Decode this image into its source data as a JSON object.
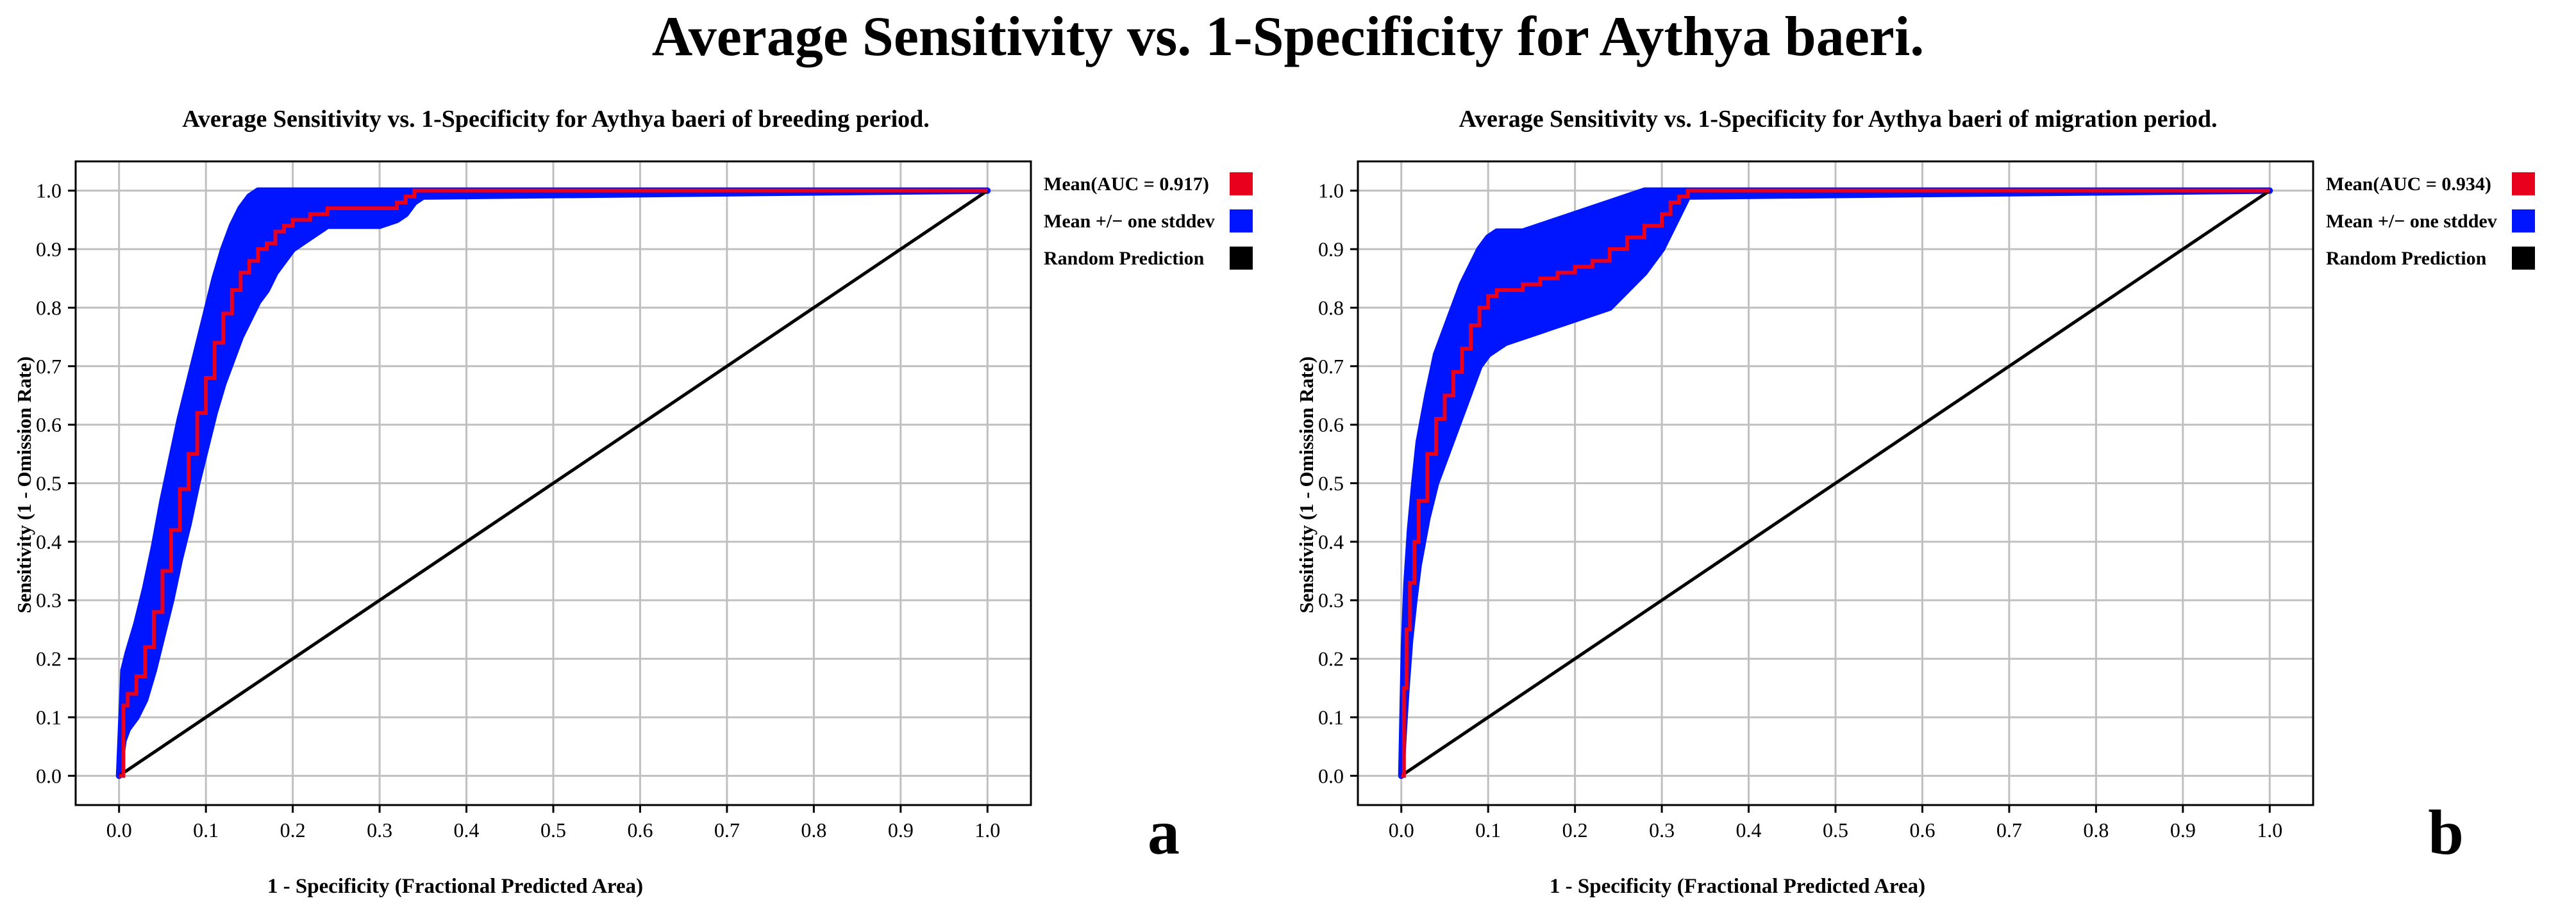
{
  "title": "Average Sensitivity vs. 1-Specificity for Aythya baeri.",
  "colors": {
    "mean": "#e8001c",
    "band": "#0015ff",
    "random": "#000000",
    "grid": "#c0c0c0"
  },
  "chart_data": [
    {
      "type": "line",
      "panel_letter": "a",
      "title": "Average Sensitivity vs. 1-Specificity for Aythya baeri of breeding period.",
      "xlabel": "1 - Specificity (Fractional Predicted Area)",
      "ylabel": "Sensitivity (1 - Omission Rate)",
      "xlim": [
        -0.05,
        1.05
      ],
      "ylim": [
        -0.05,
        1.05
      ],
      "xticks": [
        "0.0",
        "0.1",
        "0.2",
        "0.3",
        "0.4",
        "0.5",
        "0.6",
        "0.7",
        "0.8",
        "0.9",
        "1.0"
      ],
      "yticks": [
        "0.0",
        "0.1",
        "0.2",
        "0.3",
        "0.4",
        "0.5",
        "0.6",
        "0.7",
        "0.8",
        "0.9",
        "1.0"
      ],
      "grid": true,
      "legend_position": "right",
      "legend": [
        "Mean(AUC = 0.917)",
        "Mean +/− one stddev",
        "Random Prediction"
      ],
      "series": [
        {
          "name": "Mean",
          "x": [
            0,
            0.005,
            0.01,
            0.02,
            0.03,
            0.04,
            0.05,
            0.06,
            0.07,
            0.08,
            0.09,
            0.1,
            0.11,
            0.12,
            0.13,
            0.14,
            0.15,
            0.16,
            0.17,
            0.18,
            0.19,
            0.2,
            0.22,
            0.24,
            0.26,
            0.28,
            0.3,
            0.32,
            0.33,
            0.34,
            0.35,
            1.0
          ],
          "y": [
            0,
            0.12,
            0.14,
            0.17,
            0.22,
            0.28,
            0.35,
            0.42,
            0.49,
            0.55,
            0.62,
            0.68,
            0.74,
            0.79,
            0.83,
            0.86,
            0.88,
            0.9,
            0.91,
            0.93,
            0.94,
            0.95,
            0.96,
            0.97,
            0.97,
            0.97,
            0.97,
            0.98,
            0.99,
            1.0,
            1.0,
            1.0
          ]
        },
        {
          "name": "Mean + stddev",
          "x": [
            0,
            0.005,
            0.01,
            0.02,
            0.03,
            0.04,
            0.05,
            0.06,
            0.07,
            0.08,
            0.09,
            0.1,
            0.11,
            0.12,
            0.13,
            0.14,
            0.15,
            0.16,
            0.17,
            0.18,
            0.19,
            0.2,
            0.22,
            0.24,
            0.26,
            0.28,
            0.3,
            0.32,
            0.33,
            0.34,
            0.35,
            1.0
          ],
          "y": [
            0,
            0.18,
            0.21,
            0.26,
            0.32,
            0.39,
            0.47,
            0.54,
            0.61,
            0.67,
            0.73,
            0.79,
            0.85,
            0.9,
            0.94,
            0.97,
            0.99,
            1.0,
            1.0,
            1.0,
            1.0,
            1.0,
            1.0,
            1.0,
            1.0,
            1.0,
            1.0,
            1.0,
            1.0,
            1.0,
            1.0,
            1.0
          ]
        },
        {
          "name": "Mean - stddev",
          "x": [
            0,
            0.005,
            0.01,
            0.02,
            0.03,
            0.04,
            0.05,
            0.06,
            0.07,
            0.08,
            0.09,
            0.1,
            0.11,
            0.12,
            0.13,
            0.14,
            0.15,
            0.16,
            0.17,
            0.18,
            0.19,
            0.2,
            0.22,
            0.24,
            0.26,
            0.28,
            0.3,
            0.32,
            0.33,
            0.34,
            0.35,
            1.0
          ],
          "y": [
            0,
            0.06,
            0.08,
            0.1,
            0.13,
            0.18,
            0.24,
            0.3,
            0.37,
            0.43,
            0.5,
            0.56,
            0.62,
            0.67,
            0.71,
            0.75,
            0.78,
            0.81,
            0.83,
            0.86,
            0.88,
            0.9,
            0.92,
            0.94,
            0.94,
            0.94,
            0.94,
            0.95,
            0.96,
            0.98,
            0.99,
            1.0
          ]
        },
        {
          "name": "Random Prediction",
          "x": [
            0,
            1
          ],
          "y": [
            0,
            1
          ]
        }
      ]
    },
    {
      "type": "line",
      "panel_letter": "b",
      "title": "Average Sensitivity vs. 1-Specificity for Aythya baeri of migration period.",
      "xlabel": "1 - Specificity (Fractional Predicted Area)",
      "ylabel": "Sensitivity (1 - Omission Rate)",
      "xlim": [
        -0.05,
        1.05
      ],
      "ylim": [
        -0.05,
        1.05
      ],
      "xticks": [
        "0.0",
        "0.1",
        "0.2",
        "0.3",
        "0.4",
        "0.5",
        "0.6",
        "0.7",
        "0.8",
        "0.9",
        "1.0"
      ],
      "yticks": [
        "0.0",
        "0.1",
        "0.2",
        "0.3",
        "0.4",
        "0.5",
        "0.6",
        "0.7",
        "0.8",
        "0.9",
        "1.0"
      ],
      "grid": true,
      "legend_position": "right",
      "legend": [
        "Mean(AUC = 0.934)",
        "Mean +/− one stddev",
        "Random Prediction"
      ],
      "series": [
        {
          "name": "Mean",
          "x": [
            0,
            0.003,
            0.006,
            0.01,
            0.015,
            0.02,
            0.03,
            0.04,
            0.05,
            0.06,
            0.07,
            0.08,
            0.09,
            0.1,
            0.11,
            0.12,
            0.14,
            0.16,
            0.18,
            0.2,
            0.22,
            0.24,
            0.26,
            0.28,
            0.3,
            0.31,
            0.32,
            0.33,
            1.0
          ],
          "y": [
            0,
            0.15,
            0.25,
            0.33,
            0.4,
            0.47,
            0.55,
            0.61,
            0.65,
            0.69,
            0.73,
            0.77,
            0.8,
            0.82,
            0.83,
            0.83,
            0.84,
            0.85,
            0.86,
            0.87,
            0.88,
            0.9,
            0.92,
            0.94,
            0.96,
            0.98,
            0.99,
            1.0,
            1.0
          ]
        },
        {
          "name": "Mean + stddev",
          "x": [
            0,
            0.003,
            0.006,
            0.01,
            0.015,
            0.02,
            0.03,
            0.04,
            0.05,
            0.06,
            0.07,
            0.08,
            0.09,
            0.1,
            0.11,
            0.12,
            0.14,
            0.16,
            0.18,
            0.2,
            0.22,
            0.24,
            0.26,
            0.28,
            0.3,
            0.31,
            0.32,
            0.33,
            1.0
          ],
          "y": [
            0,
            0.22,
            0.33,
            0.42,
            0.5,
            0.57,
            0.65,
            0.72,
            0.76,
            0.8,
            0.84,
            0.87,
            0.9,
            0.92,
            0.93,
            0.93,
            0.93,
            0.94,
            0.95,
            0.96,
            0.97,
            0.98,
            0.99,
            1.0,
            1.0,
            1.0,
            1.0,
            1.0,
            1.0
          ]
        },
        {
          "name": "Mean - stddev",
          "x": [
            0,
            0.003,
            0.006,
            0.01,
            0.015,
            0.02,
            0.03,
            0.04,
            0.05,
            0.06,
            0.07,
            0.08,
            0.09,
            0.1,
            0.11,
            0.12,
            0.14,
            0.16,
            0.18,
            0.2,
            0.22,
            0.24,
            0.26,
            0.28,
            0.3,
            0.31,
            0.32,
            0.33,
            1.0
          ],
          "y": [
            0,
            0.08,
            0.15,
            0.23,
            0.3,
            0.36,
            0.44,
            0.5,
            0.54,
            0.58,
            0.62,
            0.66,
            0.7,
            0.72,
            0.73,
            0.74,
            0.75,
            0.76,
            0.77,
            0.78,
            0.79,
            0.8,
            0.83,
            0.86,
            0.9,
            0.93,
            0.96,
            0.99,
            1.0
          ]
        },
        {
          "name": "Random Prediction",
          "x": [
            0,
            1
          ],
          "y": [
            0,
            1
          ]
        }
      ]
    }
  ]
}
